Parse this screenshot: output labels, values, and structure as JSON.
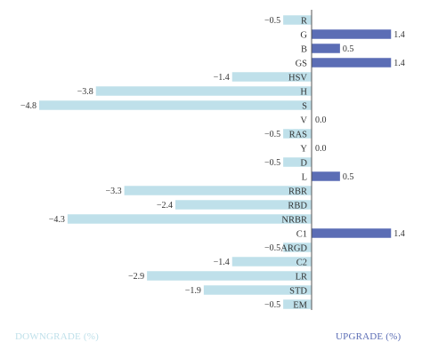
{
  "colors": {
    "downgrade": "#bfe0ea",
    "upgrade": "#5b6db5",
    "axis": "#555555",
    "text": "#333333"
  },
  "chart_data": {
    "type": "bar",
    "orientation": "horizontal",
    "categories": [
      "R",
      "G",
      "B",
      "GS",
      "HSV",
      "H",
      "S",
      "V",
      "RAS",
      "Y",
      "D",
      "L",
      "RBR",
      "RBD",
      "NRBR",
      "C1",
      "ARGD",
      "C2",
      "LR",
      "STD",
      "EM"
    ],
    "values": [
      -0.5,
      1.4,
      0.5,
      1.4,
      -1.4,
      -3.8,
      -4.8,
      0.0,
      -0.5,
      0.0,
      -0.5,
      0.5,
      -3.3,
      -2.4,
      -4.3,
      1.4,
      -0.5,
      -1.4,
      -2.9,
      -1.9,
      -0.5
    ],
    "value_labels": [
      "−0.5",
      "1.4",
      "0.5",
      "1.4",
      "−1.4",
      "−3.8",
      "−4.8",
      "0.0",
      "−0.5",
      "0.0",
      "−0.5",
      "0.5",
      "−3.3",
      "−2.4",
      "−4.3",
      "1.4",
      "−0.5",
      "−1.4",
      "−2.9",
      "−1.9",
      "−0.5"
    ],
    "xlim": [
      -4.8,
      1.4
    ],
    "legend": [
      {
        "name": "DOWNGRADE (%)",
        "position": "bottom-left"
      },
      {
        "name": "UPGRADE (%)",
        "position": "bottom-right"
      }
    ],
    "title": "",
    "xlabel": "",
    "ylabel": ""
  }
}
